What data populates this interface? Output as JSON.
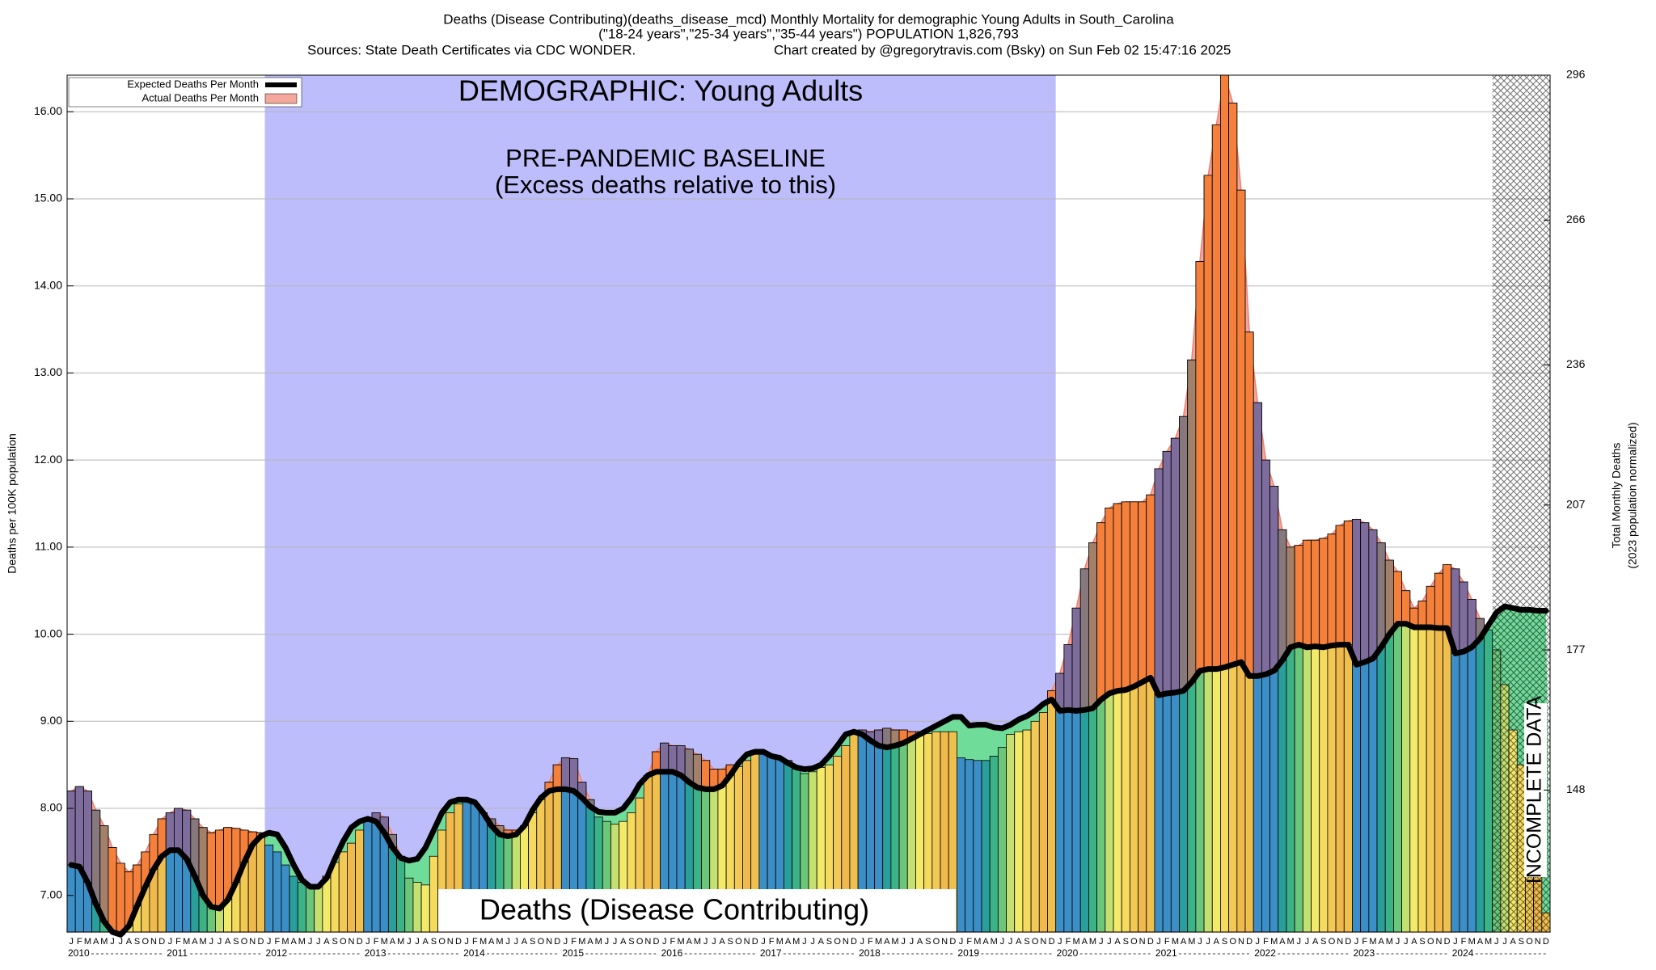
{
  "chart_data": {
    "type": "bar",
    "title": "Deaths (Disease Contributing)(deaths_disease_mcd) Monthly Mortality for demographic Young Adults in South_Carolina",
    "subtitle": "(\"18-24 years\",\"25-34 years\",\"35-44 years\") POPULATION 1,826,793",
    "sources": "Sources: State Death Certificates via CDC WONDER.",
    "credit": "Chart created by @gregorytravis.com (Bsky) on Sun Feb 02 15:47:16 2025",
    "y_label": "Deaths per 100K population",
    "y2_label": [
      "Total Monthly Deaths",
      "(2023 population normalized)"
    ],
    "annotations": {
      "demographic": "DEMOGRAPHIC: Young Adults",
      "baseline": "PRE-PANDEMIC BASELINE",
      "baseline_note": "(Excess deaths relative to this)",
      "metric": "Deaths (Disease Contributing)",
      "incomplete": "INCOMPLETE DATA"
    },
    "categories": [
      "J",
      "F",
      "M",
      "A",
      "M",
      "J",
      "J",
      "A",
      "S",
      "O",
      "N",
      "D",
      "J",
      "F",
      "M",
      "A",
      "M",
      "J",
      "J",
      "A",
      "S",
      "O",
      "N",
      "D",
      "J",
      "F",
      "M",
      "A",
      "M",
      "J",
      "J",
      "A",
      "S",
      "O",
      "N",
      "D",
      "J",
      "F",
      "M",
      "A",
      "M",
      "J",
      "J",
      "A",
      "S",
      "O",
      "N",
      "D",
      "J",
      "F",
      "M",
      "A",
      "M",
      "J",
      "J",
      "A",
      "S",
      "O",
      "N",
      "D",
      "J",
      "F",
      "M",
      "A",
      "M",
      "J",
      "J",
      "A",
      "S",
      "O",
      "N",
      "D",
      "J",
      "F",
      "M",
      "A",
      "M",
      "J",
      "J",
      "A",
      "S",
      "O",
      "N",
      "D",
      "J",
      "F",
      "M",
      "A",
      "M",
      "J",
      "J",
      "A",
      "S",
      "O",
      "N",
      "D",
      "J",
      "F",
      "M",
      "A",
      "M",
      "J",
      "J",
      "A",
      "S",
      "O",
      "N",
      "D",
      "J",
      "F",
      "M",
      "A",
      "M",
      "J",
      "J",
      "A",
      "S",
      "O",
      "N",
      "D",
      "J",
      "F",
      "M",
      "A",
      "M",
      "J",
      "J",
      "A",
      "S",
      "O",
      "N",
      "D",
      "J",
      "F",
      "M",
      "A",
      "M",
      "J",
      "J",
      "A",
      "S",
      "O",
      "N",
      "D",
      "J",
      "F",
      "M",
      "A",
      "M",
      "J",
      "J",
      "A",
      "S",
      "O",
      "N",
      "D",
      "J",
      "F",
      "M",
      "A",
      "M",
      "J",
      "J",
      "A",
      "S",
      "O",
      "N",
      "D",
      "J",
      "F",
      "M",
      "A",
      "M",
      "J",
      "J",
      "A",
      "S",
      "O",
      "N",
      "D"
    ],
    "years": [
      "2010",
      "2011",
      "2012",
      "2013",
      "2014",
      "2015",
      "2016",
      "2017",
      "2018",
      "2019",
      "2020",
      "2021",
      "2022",
      "2023",
      "2024"
    ],
    "series": [
      {
        "name": "Expected Deaths Per Month",
        "type": "line",
        "color": "#000000",
        "values": [
          7.35,
          7.33,
          7.15,
          6.9,
          6.7,
          6.58,
          6.55,
          6.65,
          6.88,
          7.1,
          7.3,
          7.45,
          7.52,
          7.52,
          7.42,
          7.22,
          7.0,
          6.87,
          6.85,
          6.95,
          7.15,
          7.38,
          7.58,
          7.68,
          7.72,
          7.7,
          7.55,
          7.35,
          7.18,
          7.1,
          7.1,
          7.2,
          7.42,
          7.62,
          7.78,
          7.85,
          7.88,
          7.85,
          7.72,
          7.55,
          7.43,
          7.4,
          7.42,
          7.55,
          7.75,
          7.95,
          8.07,
          8.1,
          8.1,
          8.07,
          7.95,
          7.8,
          7.7,
          7.68,
          7.7,
          7.8,
          7.98,
          8.12,
          8.2,
          8.22,
          8.22,
          8.2,
          8.12,
          8.02,
          7.96,
          7.95,
          7.95,
          8.0,
          8.12,
          8.28,
          8.38,
          8.42,
          8.42,
          8.42,
          8.38,
          8.3,
          8.24,
          8.22,
          8.22,
          8.26,
          8.38,
          8.52,
          8.62,
          8.65,
          8.65,
          8.6,
          8.58,
          8.52,
          8.47,
          8.45,
          8.46,
          8.5,
          8.6,
          8.72,
          8.85,
          8.88,
          8.85,
          8.78,
          8.72,
          8.7,
          8.72,
          8.75,
          8.8,
          8.85,
          8.9,
          8.95,
          9.0,
          9.05,
          9.05,
          8.95,
          8.96,
          8.96,
          8.93,
          8.92,
          8.96,
          9.02,
          9.06,
          9.12,
          9.2,
          9.25,
          9.12,
          9.13,
          9.12,
          9.13,
          9.15,
          9.25,
          9.32,
          9.35,
          9.36,
          9.4,
          9.45,
          9.5,
          9.3,
          9.32,
          9.33,
          9.35,
          9.45,
          9.58,
          9.6,
          9.6,
          9.62,
          9.65,
          9.68,
          9.52,
          9.52,
          9.54,
          9.58,
          9.7,
          9.85,
          9.88,
          9.85,
          9.86,
          9.85,
          9.87,
          9.88,
          9.88,
          9.65,
          9.68,
          9.72,
          9.85,
          10.0,
          10.12,
          10.12,
          10.08,
          10.08,
          10.08,
          10.07,
          10.07,
          9.78,
          9.8,
          9.85,
          9.95,
          10.1,
          10.25,
          10.32,
          10.3,
          10.28,
          10.28,
          10.27,
          10.27
        ]
      },
      {
        "name": "Actual Deaths Per Month",
        "type": "bar",
        "color": "#f4a79b",
        "values": [
          8.2,
          8.25,
          8.2,
          7.98,
          7.8,
          7.55,
          7.37,
          7.27,
          7.35,
          7.5,
          7.7,
          7.88,
          7.95,
          8.0,
          7.98,
          7.88,
          7.78,
          7.72,
          7.75,
          7.78,
          7.77,
          7.75,
          7.73,
          7.72,
          7.58,
          7.5,
          7.35,
          7.22,
          7.15,
          7.12,
          7.12,
          7.22,
          7.38,
          7.5,
          7.6,
          7.75,
          7.85,
          7.95,
          7.9,
          7.7,
          7.45,
          7.2,
          7.15,
          7.12,
          7.45,
          7.75,
          7.95,
          8.05,
          8.08,
          8.05,
          7.95,
          7.88,
          7.8,
          7.75,
          7.75,
          7.8,
          7.95,
          8.1,
          8.3,
          8.5,
          8.58,
          8.57,
          8.3,
          8.1,
          7.9,
          7.85,
          7.82,
          7.85,
          7.95,
          8.12,
          8.38,
          8.65,
          8.75,
          8.72,
          8.72,
          8.68,
          8.62,
          8.55,
          8.45,
          8.45,
          8.5,
          8.48,
          8.55,
          8.62,
          8.62,
          8.6,
          8.58,
          8.55,
          8.45,
          8.4,
          8.42,
          8.47,
          8.5,
          8.6,
          8.72,
          8.85,
          8.9,
          8.88,
          8.9,
          8.92,
          8.9,
          8.9,
          8.88,
          8.88,
          8.86,
          8.88,
          8.88,
          8.88,
          8.58,
          8.56,
          8.55,
          8.55,
          8.6,
          8.7,
          8.85,
          8.88,
          8.9,
          9.0,
          9.1,
          9.35,
          9.55,
          9.88,
          10.3,
          10.75,
          11.05,
          11.28,
          11.45,
          11.5,
          11.52,
          11.52,
          11.52,
          11.6,
          11.9,
          12.1,
          12.25,
          12.5,
          13.15,
          14.28,
          15.27,
          15.85,
          16.42,
          16.1,
          15.1,
          13.47,
          12.66,
          12.0,
          11.7,
          11.2,
          11.0,
          11.02,
          11.08,
          11.08,
          11.1,
          11.15,
          11.25,
          11.3,
          11.32,
          11.28,
          11.2,
          11.05,
          10.85,
          10.72,
          10.5,
          10.3,
          10.38,
          10.55,
          10.7,
          10.8,
          10.75,
          10.6,
          10.4,
          10.18,
          10.05,
          9.82,
          9.42,
          8.9,
          8.5,
          7.8,
          7.3,
          6.8
        ]
      }
    ],
    "month_colors": [
      "#3b8ec6",
      "#3b8ec6",
      "#3b8ec6",
      "#2a9e9a",
      "#3bb386",
      "#6cc67a",
      "#c3e070",
      "#f3ea6a",
      "#f5da5e",
      "#f3c955",
      "#efb94e",
      "#f0c04f"
    ],
    "excess_colors": [
      "#7e6d9c",
      "#7e6d9c",
      "#7e6d9c",
      "#86787c",
      "#a2806a",
      "#f5803c",
      "#f5803c",
      "#f5803c",
      "#f5803c",
      "#f5803c",
      "#f5803c",
      "#f5803c"
    ],
    "shortfall_color": "#6fdc9a",
    "baseline_color": "#bdbdfc",
    "ylim": [
      6.58,
      16.42
    ],
    "yticks": [
      {
        "value": 7,
        "label": "7.00"
      },
      {
        "value": 8,
        "label": "8.00"
      },
      {
        "value": 9,
        "label": "9.00"
      },
      {
        "value": 10,
        "label": "10.00"
      },
      {
        "value": 11,
        "label": "11.00"
      },
      {
        "value": 12,
        "label": "12.00"
      },
      {
        "value": 13,
        "label": "13.00"
      },
      {
        "value": 14,
        "label": "14.00"
      },
      {
        "value": 15,
        "label": "15.00"
      },
      {
        "value": 16,
        "label": "16.00"
      }
    ],
    "y2lim": [
      118.6,
      296
    ],
    "y2ticks": [
      148,
      177,
      207,
      236,
      266,
      296
    ],
    "grid": true,
    "legend": "upper left"
  }
}
